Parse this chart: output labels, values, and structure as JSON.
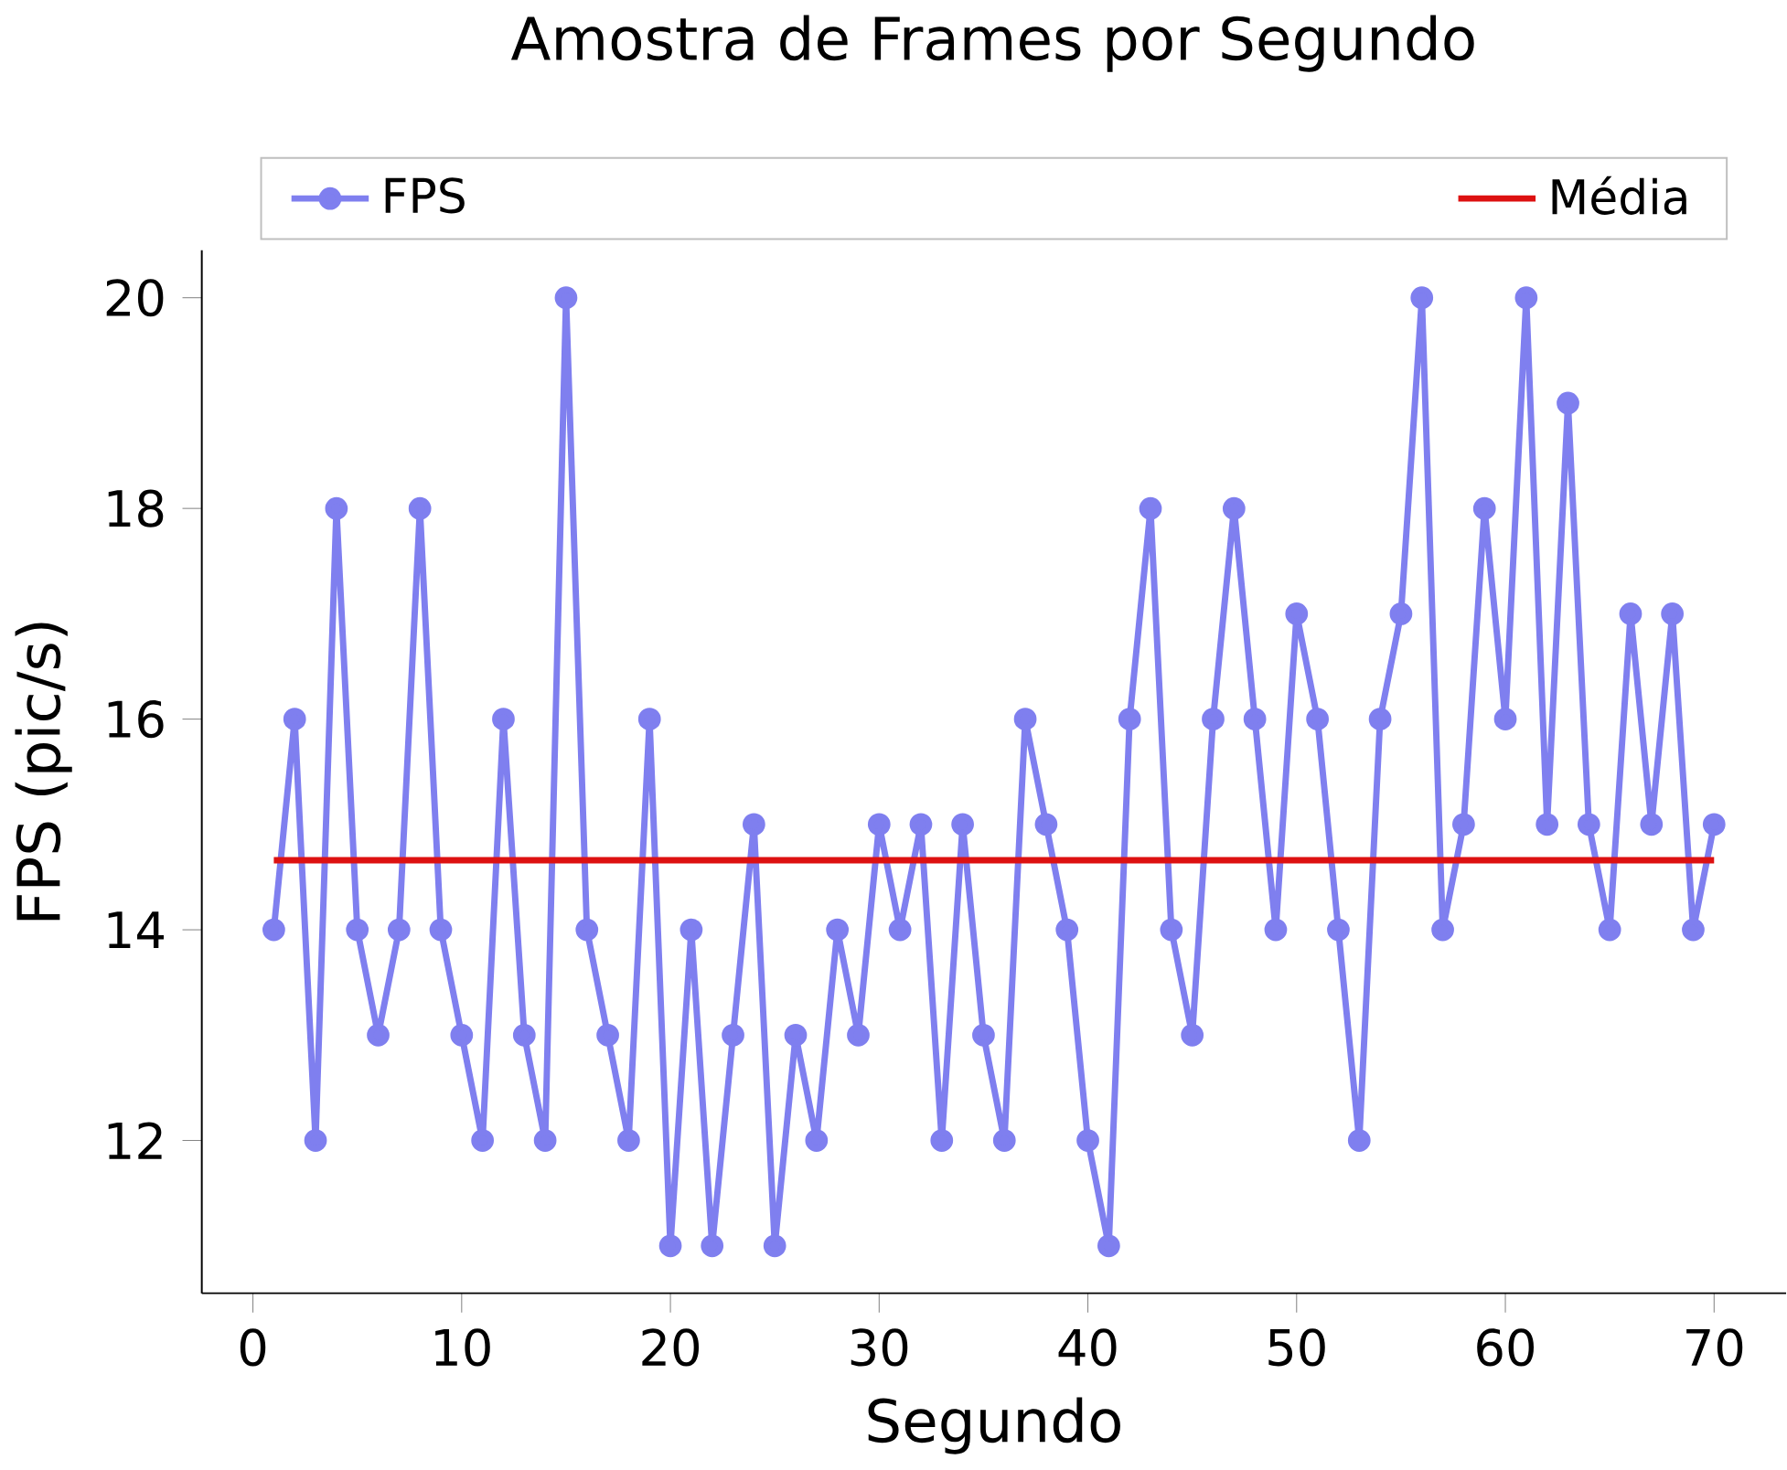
{
  "chart_data": {
    "type": "line",
    "title": "Amostra de Frames por Segundo",
    "xlabel": "Segundo",
    "ylabel": "FPS (pic/s)",
    "x": [
      1,
      2,
      3,
      4,
      5,
      6,
      7,
      8,
      9,
      10,
      11,
      12,
      13,
      14,
      15,
      16,
      17,
      18,
      19,
      20,
      21,
      22,
      23,
      24,
      25,
      26,
      27,
      28,
      29,
      30,
      31,
      32,
      33,
      34,
      35,
      36,
      37,
      38,
      39,
      40,
      41,
      42,
      43,
      44,
      45,
      46,
      47,
      48,
      49,
      50,
      51,
      52,
      53,
      54,
      55,
      56,
      57,
      58,
      59,
      60,
      61,
      62,
      63,
      64,
      65,
      66,
      67,
      68,
      69,
      70
    ],
    "series": [
      {
        "name": "FPS",
        "color": "#7f7fef",
        "values": [
          14,
          16,
          12,
          18,
          14,
          13,
          14,
          18,
          14,
          13,
          12,
          16,
          13,
          12,
          20,
          14,
          13,
          12,
          16,
          11,
          14,
          11,
          13,
          15,
          11,
          13,
          12,
          14,
          13,
          15,
          14,
          15,
          12,
          15,
          13,
          12,
          16,
          15,
          14,
          12,
          11,
          16,
          18,
          14,
          13,
          16,
          18,
          16,
          14,
          17,
          16,
          14,
          12,
          16,
          17,
          20,
          14,
          15,
          18,
          16,
          20,
          15,
          19,
          15,
          14,
          17,
          15,
          17,
          14,
          15
        ]
      }
    ],
    "ref_lines": [
      {
        "axis": "y",
        "value": 14.66,
        "label": "Média",
        "color": "#dd1111",
        "line_style": "solid"
      }
    ],
    "xlim": [
      -2.45,
      73.45
    ],
    "ylim": [
      10.55,
      20.45
    ],
    "xticks": [
      0,
      10,
      20,
      30,
      40,
      50,
      60,
      70
    ],
    "yticks": [
      12,
      14,
      16,
      18,
      20
    ],
    "grid": false,
    "legend": "top",
    "marker": "circle",
    "line_style": "solid"
  }
}
